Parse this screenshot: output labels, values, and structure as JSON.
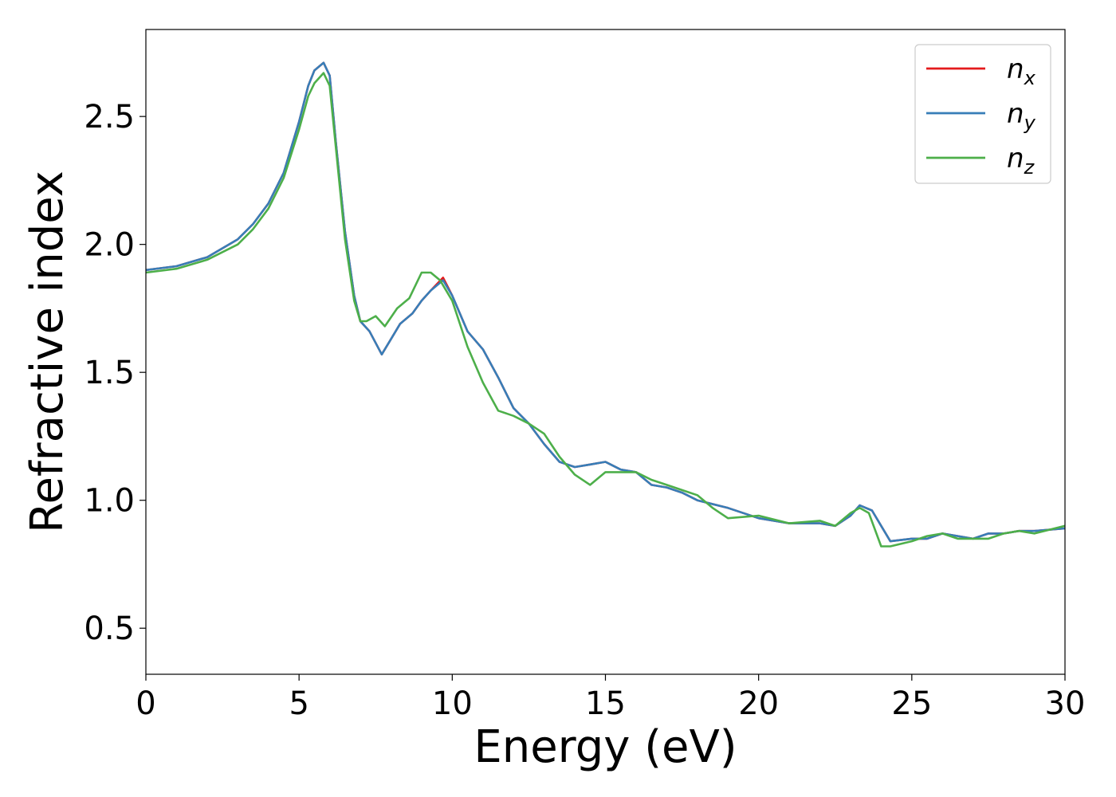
{
  "chart_data": {
    "type": "line",
    "title": "",
    "xlabel": "Energy (eV)",
    "ylabel": "Refractive index",
    "xlim": [
      0,
      30
    ],
    "ylim": [
      0.32,
      2.84
    ],
    "xticks": [
      0,
      5,
      10,
      15,
      20,
      25,
      30
    ],
    "yticks": [
      0.5,
      1.0,
      1.5,
      2.0,
      2.5
    ],
    "grid": false,
    "legend_position": "top-right",
    "series": [
      {
        "name": "n",
        "subscript": "x",
        "color": "#e41a1c",
        "x": [
          0,
          1,
          2,
          3,
          3.5,
          4,
          4.5,
          5,
          5.3,
          5.5,
          5.8,
          6.0,
          6.2,
          6.5,
          6.8,
          7.0,
          7.3,
          7.7,
          8.0,
          8.3,
          8.7,
          9.0,
          9.3,
          9.7,
          10.0,
          10.5,
          11.0,
          11.5,
          12.0,
          12.5,
          13.0,
          13.5,
          14.0,
          14.5,
          15.0,
          15.5,
          16.0,
          16.5,
          17.0,
          17.5,
          18.0,
          19.0,
          20.0,
          21.0,
          22.0,
          22.5,
          23.0,
          23.3,
          23.7,
          24.0,
          24.3,
          25.0,
          25.5,
          26.0,
          26.5,
          27.0,
          27.5,
          28.0,
          28.5,
          29.0,
          30.0
        ],
        "y": [
          1.9,
          1.915,
          1.95,
          2.02,
          2.08,
          2.16,
          2.28,
          2.48,
          2.62,
          2.68,
          2.71,
          2.66,
          2.4,
          2.05,
          1.8,
          1.7,
          1.66,
          1.57,
          1.63,
          1.69,
          1.73,
          1.78,
          1.82,
          1.87,
          1.8,
          1.66,
          1.59,
          1.48,
          1.36,
          1.3,
          1.22,
          1.15,
          1.13,
          1.14,
          1.15,
          1.12,
          1.11,
          1.06,
          1.05,
          1.03,
          1.0,
          0.97,
          0.93,
          0.91,
          0.91,
          0.9,
          0.94,
          0.98,
          0.96,
          0.9,
          0.84,
          0.85,
          0.85,
          0.87,
          0.86,
          0.85,
          0.87,
          0.87,
          0.88,
          0.88,
          0.89
        ]
      },
      {
        "name": "n",
        "subscript": "y",
        "color": "#377eb8",
        "x": [
          0,
          1,
          2,
          3,
          3.5,
          4,
          4.5,
          5,
          5.3,
          5.5,
          5.8,
          6.0,
          6.2,
          6.5,
          6.8,
          7.0,
          7.3,
          7.7,
          8.0,
          8.3,
          8.7,
          9.0,
          9.3,
          9.7,
          10.0,
          10.5,
          11.0,
          11.5,
          12.0,
          12.5,
          13.0,
          13.5,
          14.0,
          14.5,
          15.0,
          15.5,
          16.0,
          16.5,
          17.0,
          17.5,
          18.0,
          19.0,
          20.0,
          21.0,
          22.0,
          22.5,
          23.0,
          23.3,
          23.7,
          24.0,
          24.3,
          25.0,
          25.5,
          26.0,
          26.5,
          27.0,
          27.5,
          28.0,
          28.5,
          29.0,
          30.0
        ],
        "y": [
          1.9,
          1.915,
          1.95,
          2.02,
          2.08,
          2.16,
          2.28,
          2.48,
          2.62,
          2.68,
          2.71,
          2.66,
          2.4,
          2.05,
          1.8,
          1.7,
          1.66,
          1.57,
          1.63,
          1.69,
          1.73,
          1.78,
          1.82,
          1.86,
          1.8,
          1.66,
          1.59,
          1.48,
          1.36,
          1.3,
          1.22,
          1.15,
          1.13,
          1.14,
          1.15,
          1.12,
          1.11,
          1.06,
          1.05,
          1.03,
          1.0,
          0.97,
          0.93,
          0.91,
          0.91,
          0.9,
          0.94,
          0.98,
          0.96,
          0.9,
          0.84,
          0.85,
          0.85,
          0.87,
          0.86,
          0.85,
          0.87,
          0.87,
          0.88,
          0.88,
          0.89
        ]
      },
      {
        "name": "n",
        "subscript": "z",
        "color": "#4daf4a",
        "x": [
          0,
          1,
          2,
          3,
          3.5,
          4,
          4.5,
          5,
          5.3,
          5.5,
          5.8,
          6.0,
          6.2,
          6.5,
          6.8,
          7.0,
          7.2,
          7.5,
          7.8,
          8.2,
          8.6,
          9.0,
          9.3,
          9.6,
          10.0,
          10.5,
          11.0,
          11.5,
          12.0,
          12.5,
          13.0,
          13.5,
          14.0,
          14.5,
          15.0,
          15.5,
          16.0,
          16.5,
          17.0,
          17.5,
          18.0,
          18.5,
          19.0,
          20.0,
          21.0,
          22.0,
          22.5,
          23.0,
          23.3,
          23.6,
          24.0,
          24.3,
          25.0,
          25.5,
          26.0,
          26.5,
          27.0,
          27.5,
          28.0,
          28.5,
          29.0,
          30.0
        ],
        "y": [
          1.89,
          1.905,
          1.94,
          2.0,
          2.06,
          2.14,
          2.26,
          2.45,
          2.58,
          2.63,
          2.67,
          2.62,
          2.38,
          2.02,
          1.78,
          1.7,
          1.7,
          1.72,
          1.68,
          1.75,
          1.79,
          1.89,
          1.89,
          1.86,
          1.78,
          1.6,
          1.46,
          1.35,
          1.33,
          1.3,
          1.26,
          1.17,
          1.1,
          1.06,
          1.11,
          1.11,
          1.11,
          1.08,
          1.06,
          1.04,
          1.02,
          0.97,
          0.93,
          0.94,
          0.91,
          0.92,
          0.9,
          0.95,
          0.97,
          0.95,
          0.82,
          0.82,
          0.84,
          0.86,
          0.87,
          0.85,
          0.85,
          0.85,
          0.87,
          0.88,
          0.87,
          0.9
        ]
      }
    ]
  }
}
